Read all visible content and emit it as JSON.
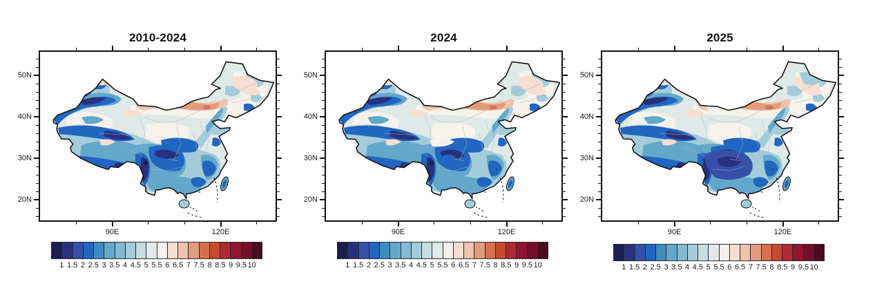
{
  "figure": {
    "background": "#ffffff",
    "panels": [
      {
        "title": "2010-2024"
      },
      {
        "title": "2024"
      },
      {
        "title": "2025"
      }
    ],
    "y_tick_labels": [
      "50N",
      "40N",
      "30N",
      "20N"
    ],
    "x_tick_labels": [
      "90E",
      "120E"
    ],
    "colorbar": {
      "labels": [
        "1",
        "1.5",
        "2",
        "2.5",
        "3",
        "3.5",
        "4",
        "4.5",
        "5",
        "5.5",
        "6",
        "6.5",
        "7",
        "7.5",
        "8",
        "8.5",
        "9",
        "9.5",
        "10"
      ],
      "colors": [
        "#1c1e4f",
        "#28317e",
        "#3650a8",
        "#2166c0",
        "#3f8dc0",
        "#62a8ca",
        "#82bad2",
        "#a3ccda",
        "#c6dde2",
        "#e1eae9",
        "#f6f0ec",
        "#f7ded2",
        "#efc3ad",
        "#e39b7b",
        "#d4704d",
        "#c54a30",
        "#b12a33",
        "#93142f",
        "#70102a",
        "#4b0a1e"
      ],
      "outline_color": "#2b2b2b"
    }
  },
  "chart_data": {
    "type": "heatmap",
    "subtype": "filled_contour_map",
    "region": "China",
    "panels": [
      {
        "title": "2010-2024",
        "summary": "Low values (blue, ~1-5) over western, southwestern and southern China; darkest bands (1-2) along the Tien Shan, Kunlun and Himalaya ranges and over western Sichuan; high band (red-brown, ~6.5-8) along the northern Inner Mongolia border; pale pink (~6-7) over much of northeast China; near-neutral (5-6) in the Tarim basin and north China plain."
      },
      {
        "title": "2024",
        "summary": "Pattern very similar to 2010-2024: blue minima over the Tibetan Plateau margins, Sichuan and south China, red-brown maximum band across Inner Mongolia, pale northeast."
      },
      {
        "title": "2025",
        "summary": "Blues more extensive and darker over central-southern China (large connected 1.5-3 region around Sichuan-Guizhou); northern red band weaker and shifted east; Taiwan lighter blue."
      }
    ],
    "x_axis": {
      "tick_labels": [
        "90E",
        "120E"
      ],
      "approx_lon_range": [
        70,
        135
      ],
      "tick_interval_deg": 10
    },
    "y_axis": {
      "tick_labels": [
        "50N",
        "40N",
        "30N",
        "20N"
      ],
      "approx_lat_range": [
        15,
        56
      ],
      "minor_tick_interval_deg": 2
    },
    "color_levels": [
      1,
      1.5,
      2,
      2.5,
      3,
      3.5,
      4,
      4.5,
      5,
      5.5,
      6,
      6.5,
      7,
      7.5,
      8,
      8.5,
      9,
      9.5,
      10
    ],
    "colors": [
      "#1c1e4f",
      "#28317e",
      "#3650a8",
      "#2166c0",
      "#3f8dc0",
      "#62a8ca",
      "#82bad2",
      "#a3ccda",
      "#c6dde2",
      "#e1eae9",
      "#f6f0ec",
      "#f7ded2",
      "#efc3ad",
      "#e39b7b",
      "#d4704d",
      "#c54a30",
      "#b12a33",
      "#93142f",
      "#70102a",
      "#4b0a1e"
    ],
    "colormap": "blue-to-red diverging (RdBu reversed), 20 discrete classes",
    "legend_position": "horizontal colorbar below each panel",
    "grid": false
  }
}
